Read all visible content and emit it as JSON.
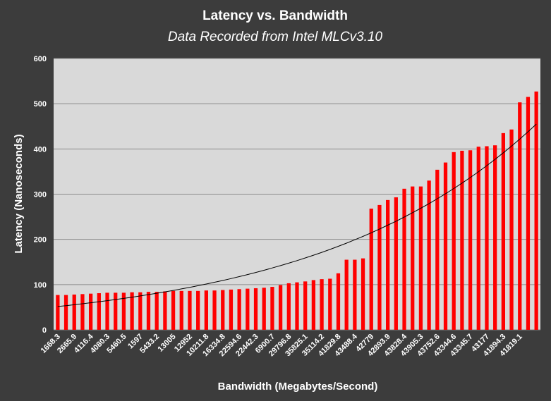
{
  "chart_data": {
    "type": "bar",
    "title": "Latency vs. Bandwidth",
    "subtitle": "Data Recorded from Intel MLCv3.10",
    "xlabel": "Bandwidth (Megabytes/Second)",
    "ylabel": "Latency (Nanoseconds)",
    "ylim": [
      0,
      600
    ],
    "yticks": [
      0,
      100,
      200,
      300,
      400,
      500,
      600
    ],
    "grid": true,
    "legend": "none",
    "bar_color": "#ff0000",
    "plot_bg": "#d9d9d9",
    "page_bg": "#3c3c3c",
    "trendline": "exponential",
    "tick_labels": [
      "1668.3",
      "2665.9",
      "4116.4",
      "4080.3",
      "5460.5",
      "1597",
      "5433.2",
      "13005",
      "12952",
      "10211.8",
      "16334.8",
      "22594.6",
      "22442.3",
      "6900.7",
      "29796.8",
      "35825.1",
      "35114.2",
      "41829.8",
      "43488.4",
      "42779",
      "42893.9",
      "43828.4",
      "43905.3",
      "43752.6",
      "43344.6",
      "43345.7",
      "43177",
      "41894.3",
      "41819.1"
    ],
    "values": [
      77,
      77,
      78,
      79,
      80,
      81,
      82,
      82,
      82,
      83,
      83,
      84,
      84,
      85,
      86,
      86,
      86,
      86,
      87,
      87,
      88,
      89,
      90,
      91,
      92,
      93,
      95,
      99,
      103,
      105,
      107,
      110,
      112,
      113,
      125,
      155,
      155,
      158,
      268,
      276,
      287,
      293,
      312,
      317,
      317,
      330,
      354,
      370,
      393,
      396,
      397,
      405,
      406,
      408,
      435,
      443,
      503,
      515,
      527
    ]
  }
}
